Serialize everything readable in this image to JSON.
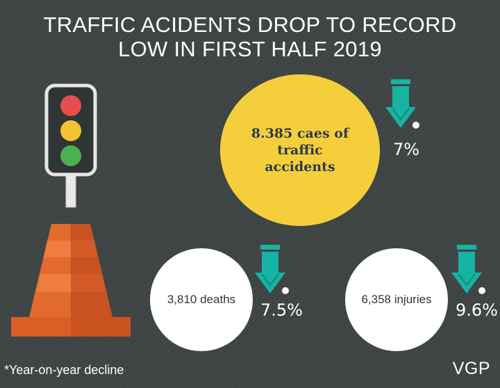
{
  "title": {
    "line1": "TRAFFIC ACIDENTS DROP TO RECORD",
    "line2": "LOW IN FIRST HALF 2019"
  },
  "stats": {
    "accidents": {
      "text": "8.385 caes of traffic accidents",
      "change": "7%"
    },
    "deaths": {
      "text": "3,810 deaths",
      "change": "7.5%"
    },
    "injuries": {
      "text": "6,358 injuries",
      "change": "9.6%"
    }
  },
  "footnote": "*Year-on-year decline",
  "credit": "VGP",
  "icons": [
    "traffic-light-icon",
    "traffic-cone-icon",
    "down-arrow-icon"
  ],
  "colors": {
    "background": "#3e4444",
    "accent_yellow": "#f5cf3b",
    "arrow_teal": "#17b3a3",
    "cone_orange": "#e0682a"
  }
}
